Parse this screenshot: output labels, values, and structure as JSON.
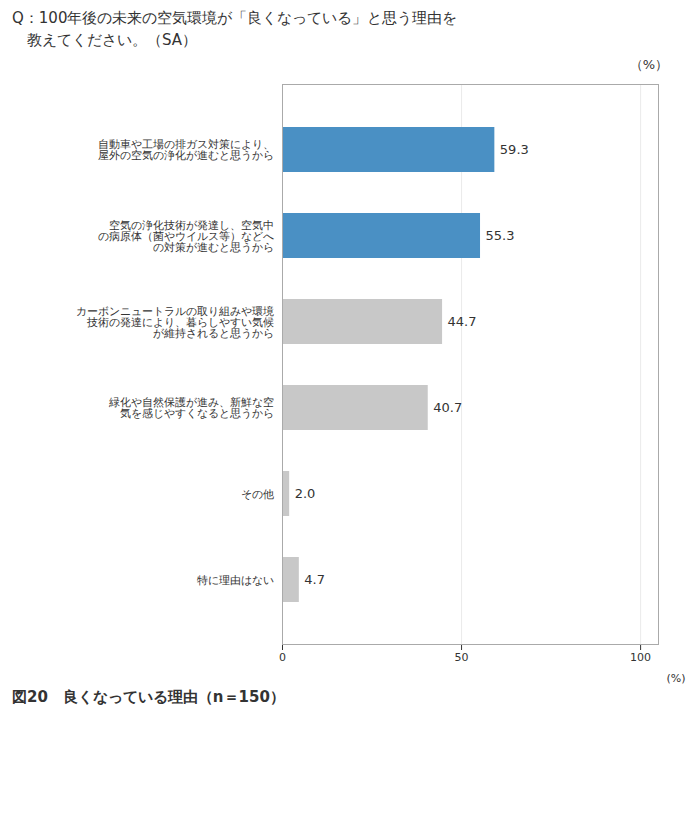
{
  "chart_data": {
    "type": "bar",
    "orientation": "horizontal",
    "title": "Q：100年後の未来の空気環境が「良くなっている」と思う理由を\n　教えてください。（SA）",
    "caption": "図20　良くなっている理由（n＝150）",
    "x_label": "(%)",
    "annotations": [
      "（%）"
    ],
    "categories": [
      "自動車や工場の排ガス対策により、\n屋外の空気の浄化が進むと思うから",
      "空気の浄化技術が発達し、空気中\nの病原体（菌やウイルス等）などへ\nの対策が進むと思うから",
      "カーボンニュートラルの取り組みや環境\n技術の発達により、暮らしやすい気候\nが維持されると思うから",
      "緑化や自然保護が進み、新鮮な空\n気を感じやすくなると思うから",
      "その他",
      "特に理由はない"
    ],
    "values": [
      59.3,
      55.3,
      44.7,
      40.7,
      2.0,
      4.7
    ],
    "value_labels": [
      "59.3",
      "55.3",
      "44.7",
      "40.7",
      "2.0",
      "4.7"
    ],
    "data_labels": true,
    "colors": [
      "#4a90c4",
      "#4a90c4",
      "#c8c8c8",
      "#c8c8c8",
      "#c8c8c8",
      "#c8c8c8"
    ],
    "xlim": [
      0,
      105
    ],
    "xticks": [
      0,
      50,
      100
    ],
    "grid": true
  }
}
